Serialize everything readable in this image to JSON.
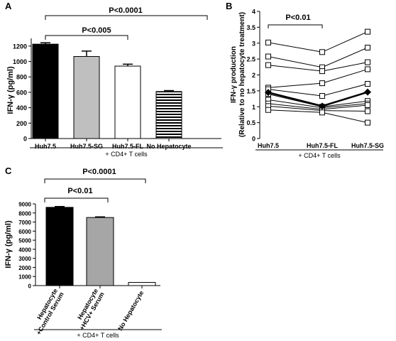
{
  "chart_data": [
    {
      "panel": "A",
      "type": "bar",
      "ylabel": "IFN-γ (pg/ml)",
      "ylim": [
        0,
        1300
      ],
      "yticks": [
        0,
        200,
        400,
        600,
        800,
        1000,
        1200
      ],
      "categories": [
        "Huh7.5",
        "Huh7.5-SG",
        "Huh7.5-FL",
        "No Hepatocyte"
      ],
      "values": [
        1225,
        1065,
        940,
        610
      ],
      "errors": [
        18,
        70,
        25,
        12
      ],
      "fills": [
        "#000000",
        "#bfbfbf",
        "#ffffff",
        "hatched"
      ],
      "group_label": "+ CD4+ T cells",
      "annotations": [
        {
          "text": "P<0.0001",
          "from": 0,
          "to": 3
        },
        {
          "text": "P<0.005",
          "from": 0,
          "to": 2
        }
      ]
    },
    {
      "panel": "B",
      "type": "line",
      "ylabel_line1": "IFN-γ production",
      "ylabel_line2": "(Relative to no hepatocyte treatment)",
      "ylim": [
        0,
        4
      ],
      "yticks": [
        0,
        0.5,
        1,
        1.5,
        2,
        2.5,
        3,
        3.5,
        4
      ],
      "categories": [
        "Huh7.5",
        "Huh7.5-FL",
        "Huh7.5-SG"
      ],
      "series": [
        {
          "values": [
            3.02,
            2.72,
            3.36
          ]
        },
        {
          "values": [
            2.58,
            2.24,
            2.86
          ]
        },
        {
          "values": [
            2.31,
            2.12,
            2.4
          ]
        },
        {
          "values": [
            1.6,
            1.74,
            2.18
          ]
        },
        {
          "values": [
            1.55,
            1.34,
            1.72
          ]
        },
        {
          "values": [
            1.4,
            1.0,
            1.18
          ]
        },
        {
          "values": [
            1.22,
            0.97,
            1.1
          ]
        },
        {
          "values": [
            1.1,
            0.92,
            1.05
          ]
        },
        {
          "values": [
            1.02,
            0.88,
            0.86
          ]
        },
        {
          "values": [
            0.9,
            0.82,
            0.5
          ]
        },
        {
          "values": [
            1.45,
            1.02,
            1.46
          ],
          "mean": true
        }
      ],
      "group_label": "+ CD4+ T cells",
      "annotations": [
        {
          "text": "P<0.01",
          "from": 0,
          "to": 1
        }
      ]
    },
    {
      "panel": "C",
      "type": "bar",
      "ylabel": "IFN-γ (pg/ml)",
      "ylim": [
        0,
        9000
      ],
      "yticks": [
        0,
        1000,
        2000,
        3000,
        4000,
        5000,
        6000,
        7000,
        8000,
        9000
      ],
      "categories": [
        [
          "Hepatocyte",
          "+Control Serum"
        ],
        [
          "Hepatocyte",
          "+HCV+ Serum"
        ],
        [
          "No Hepatocyte"
        ]
      ],
      "values": [
        8620,
        7500,
        350
      ],
      "errors": [
        90,
        70,
        0
      ],
      "fills": [
        "#000000",
        "#a6a6a6",
        "#ffffff"
      ],
      "group_label": "+ CD4+ T cells",
      "annotations": [
        {
          "text": "P<0.0001",
          "from": 0,
          "to": 2
        },
        {
          "text": "P<0.01",
          "from": 0,
          "to": 1
        }
      ]
    }
  ],
  "panel_letters": [
    "A",
    "B",
    "C"
  ]
}
